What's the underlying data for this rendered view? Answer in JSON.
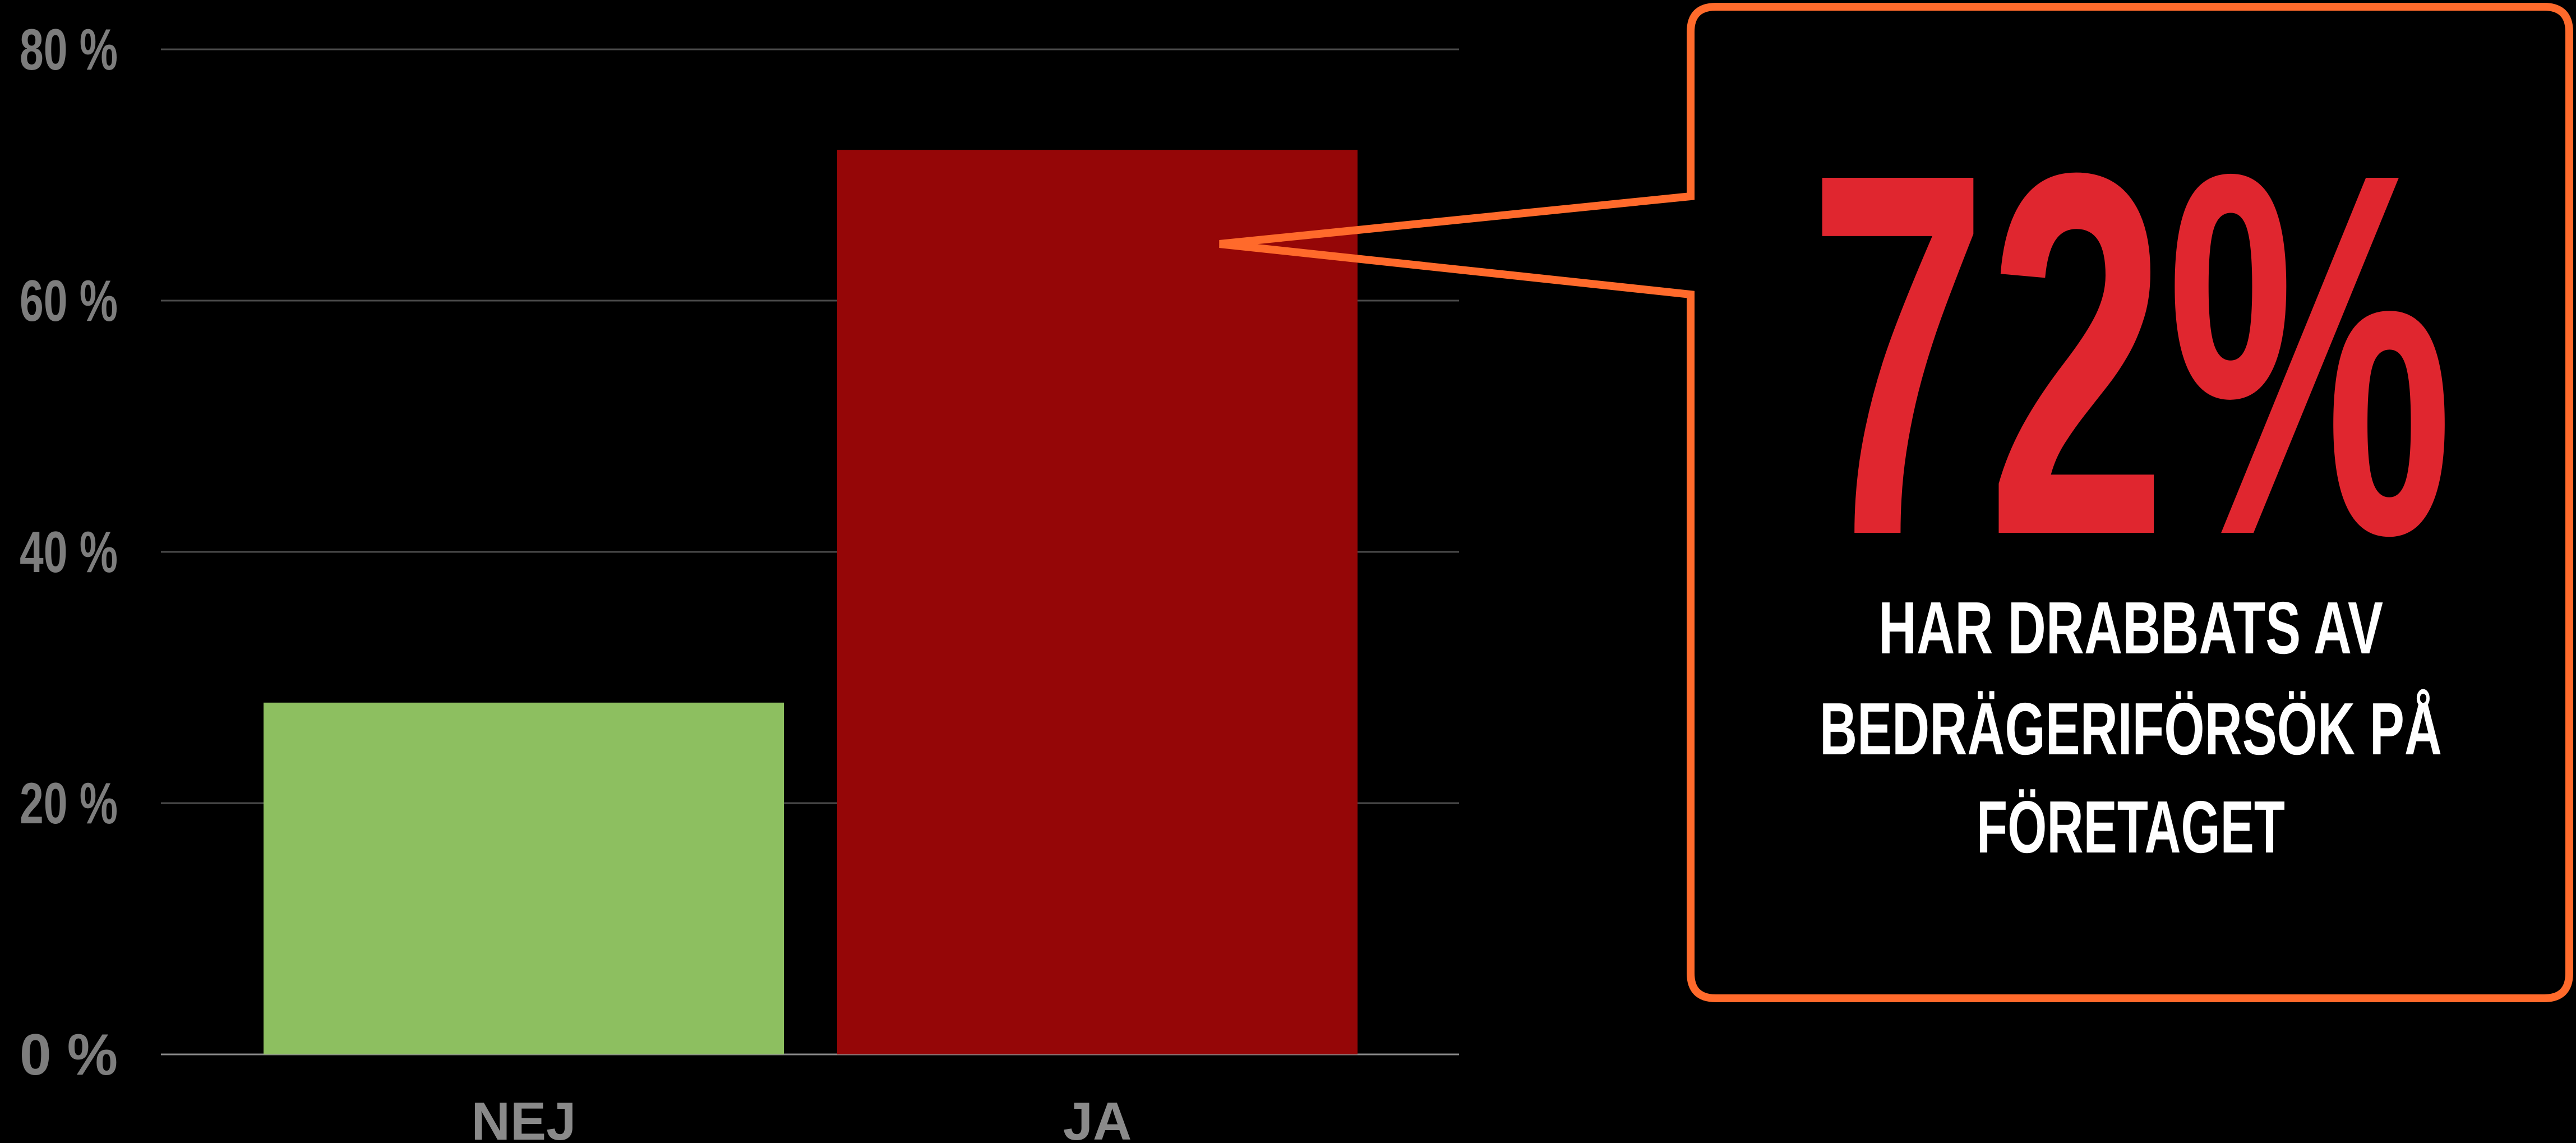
{
  "chart_data": {
    "type": "bar",
    "categories": [
      "NEJ",
      "JA"
    ],
    "values": [
      28,
      72
    ],
    "colors": [
      "#8dbf60",
      "#950607"
    ],
    "ylim": [
      0,
      80
    ],
    "yticks": [
      0,
      20,
      40,
      60,
      80
    ],
    "ytick_labels": [
      "0 %",
      "20 %",
      "40 %",
      "60 %",
      "80 %"
    ],
    "grid": true,
    "title": "",
    "xlabel": "",
    "ylabel": ""
  },
  "callout": {
    "value": "72%",
    "lines": [
      "HAR DRABBATS AV",
      "BEDRÄGERIFÖRSÖK PÅ",
      "FÖRETAGET"
    ],
    "border_color": "#ff6a2b",
    "value_color": "#e0262f",
    "text_color": "#ffffff",
    "points_to": "JA"
  }
}
